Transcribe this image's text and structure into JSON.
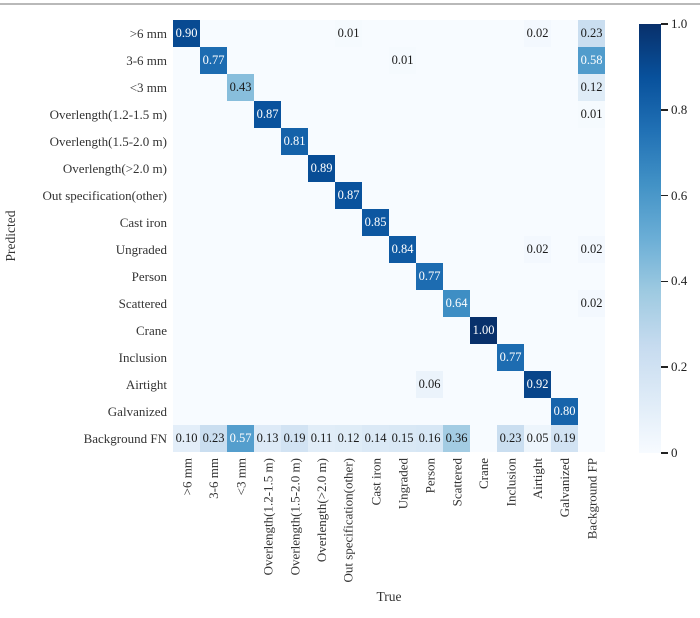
{
  "chart_data": {
    "type": "heatmap",
    "title": "",
    "xlabel": "True",
    "ylabel": "Predicted",
    "vmin": 0,
    "vmax": 1,
    "grid": false,
    "colormap": "Blues",
    "colormap_stops": [
      "#f7fbff",
      "#deebf7",
      "#c6dbef",
      "#9ecae1",
      "#6baed6",
      "#4292c6",
      "#2171b5",
      "#08519c",
      "#08306b"
    ],
    "text_color_threshold": 0.5,
    "annotation_colors": {
      "light_cell_text": "#1a1a1a",
      "dark_cell_text": "#ffffff"
    },
    "x_categories": [
      ">6 mm",
      "3-6 mm",
      "<3 mm",
      "Overlength(1.2-1.5 m)",
      "Overlength(1.5-2.0 m)",
      "Overlength(>2.0 m)",
      "Out specification(other)",
      "Cast iron",
      "Ungraded",
      "Person",
      "Scattered",
      "Crane",
      "Inclusion",
      "Airtight",
      "Galvanized",
      "Background FP"
    ],
    "y_categories": [
      ">6 mm",
      "3-6 mm",
      "<3 mm",
      "Overlength(1.2-1.5 m)",
      "Overlength(1.5-2.0 m)",
      "Overlength(>2.0 m)",
      "Out specification(other)",
      "Cast iron",
      "Ungraded",
      "Person",
      "Scattered",
      "Crane",
      "Inclusion",
      "Airtight",
      "Galvanized",
      "Background FN"
    ],
    "matrix": [
      [
        0.9,
        null,
        null,
        null,
        null,
        null,
        0.01,
        null,
        null,
        null,
        null,
        null,
        null,
        0.02,
        null,
        0.23
      ],
      [
        null,
        0.77,
        null,
        null,
        null,
        null,
        null,
        null,
        0.01,
        null,
        null,
        null,
        null,
        null,
        null,
        0.58
      ],
      [
        null,
        null,
        0.43,
        null,
        null,
        null,
        null,
        null,
        null,
        null,
        null,
        null,
        null,
        null,
        null,
        0.12
      ],
      [
        null,
        null,
        null,
        0.87,
        null,
        null,
        null,
        null,
        null,
        null,
        null,
        null,
        null,
        null,
        null,
        0.01
      ],
      [
        null,
        null,
        null,
        null,
        0.81,
        null,
        null,
        null,
        null,
        null,
        null,
        null,
        null,
        null,
        null,
        null
      ],
      [
        null,
        null,
        null,
        null,
        null,
        0.89,
        null,
        null,
        null,
        null,
        null,
        null,
        null,
        null,
        null,
        null
      ],
      [
        null,
        null,
        null,
        null,
        null,
        null,
        0.87,
        null,
        null,
        null,
        null,
        null,
        null,
        null,
        null,
        null
      ],
      [
        null,
        null,
        null,
        null,
        null,
        null,
        null,
        0.85,
        null,
        null,
        null,
        null,
        null,
        null,
        null,
        null
      ],
      [
        null,
        null,
        null,
        null,
        null,
        null,
        null,
        null,
        0.84,
        null,
        null,
        null,
        null,
        0.02,
        null,
        0.02
      ],
      [
        null,
        null,
        null,
        null,
        null,
        null,
        null,
        null,
        null,
        0.77,
        null,
        null,
        null,
        null,
        null,
        null
      ],
      [
        null,
        null,
        null,
        null,
        null,
        null,
        null,
        null,
        null,
        null,
        0.64,
        null,
        null,
        null,
        null,
        0.02
      ],
      [
        null,
        null,
        null,
        null,
        null,
        null,
        null,
        null,
        null,
        null,
        null,
        1.0,
        null,
        null,
        null,
        null
      ],
      [
        null,
        null,
        null,
        null,
        null,
        null,
        null,
        null,
        null,
        null,
        null,
        null,
        0.77,
        null,
        null,
        null
      ],
      [
        null,
        null,
        null,
        null,
        null,
        null,
        null,
        null,
        null,
        0.06,
        null,
        null,
        null,
        0.92,
        null,
        null
      ],
      [
        null,
        null,
        null,
        null,
        null,
        null,
        null,
        null,
        null,
        null,
        null,
        null,
        null,
        null,
        0.8,
        null
      ],
      [
        0.1,
        0.23,
        0.57,
        0.13,
        0.19,
        0.11,
        0.12,
        0.14,
        0.15,
        0.16,
        0.36,
        null,
        0.23,
        0.05,
        0.19,
        null
      ]
    ],
    "annotation_decimals": 2,
    "colorbar": {
      "position": "right",
      "orientation": "vertical",
      "ticks": [
        {
          "value": 1.0,
          "label": "1.0"
        },
        {
          "value": 0.8,
          "label": "0.8"
        },
        {
          "value": 0.6,
          "label": "0.6"
        },
        {
          "value": 0.4,
          "label": "0.4"
        },
        {
          "value": 0.2,
          "label": "0.2"
        },
        {
          "value": 0.0,
          "label": "0"
        }
      ]
    }
  },
  "figure": {
    "top_rule_color": "#b9b9b9",
    "background": "#ffffff"
  }
}
